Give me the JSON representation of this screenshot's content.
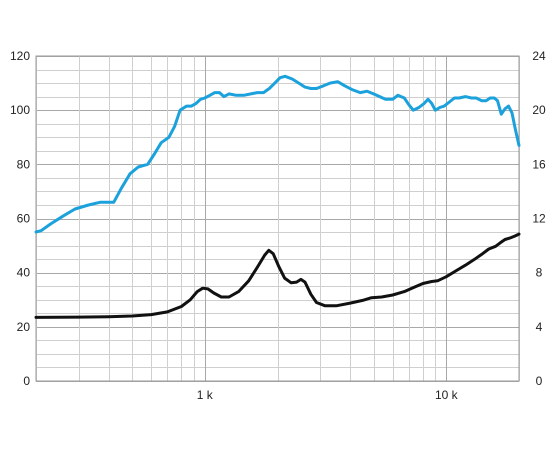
{
  "chart_data": {
    "type": "line",
    "x_scale": "log",
    "xlim": [
      200,
      20000
    ],
    "ylim_left": [
      0,
      120
    ],
    "ylim_right": [
      0,
      24
    ],
    "grid": true,
    "x_tick_labels": [
      {
        "value": 1000,
        "label": "1 k"
      },
      {
        "value": 10000,
        "label": "10 k"
      }
    ],
    "y_left_ticks": [
      0,
      20,
      40,
      60,
      80,
      100,
      120
    ],
    "y_right_ticks": [
      0,
      4,
      8,
      12,
      16,
      20,
      24
    ],
    "series": [
      {
        "axis": "left",
        "color": "#1ba1dc",
        "points": [
          [
            200,
            55
          ],
          [
            210,
            55.5
          ],
          [
            230,
            58
          ],
          [
            260,
            61
          ],
          [
            290,
            63.5
          ],
          [
            330,
            65
          ],
          [
            370,
            66
          ],
          [
            420,
            66
          ],
          [
            450,
            71
          ],
          [
            490,
            76.5
          ],
          [
            530,
            79
          ],
          [
            580,
            80
          ],
          [
            620,
            84
          ],
          [
            660,
            88
          ],
          [
            710,
            90
          ],
          [
            750,
            94
          ],
          [
            790,
            100
          ],
          [
            840,
            101.5
          ],
          [
            880,
            101.5
          ],
          [
            920,
            102.5
          ],
          [
            960,
            104
          ],
          [
            1000,
            104.5
          ],
          [
            1050,
            105.5
          ],
          [
            1100,
            106.5
          ],
          [
            1150,
            106.5
          ],
          [
            1200,
            105
          ],
          [
            1260,
            106
          ],
          [
            1350,
            105.5
          ],
          [
            1450,
            105.5
          ],
          [
            1550,
            106
          ],
          [
            1650,
            106.5
          ],
          [
            1750,
            106.5
          ],
          [
            1850,
            108
          ],
          [
            1950,
            110
          ],
          [
            2050,
            112
          ],
          [
            2150,
            112.5
          ],
          [
            2300,
            111.5
          ],
          [
            2450,
            110
          ],
          [
            2600,
            108.5
          ],
          [
            2750,
            108
          ],
          [
            2900,
            108
          ],
          [
            3100,
            109
          ],
          [
            3300,
            110
          ],
          [
            3550,
            110.5
          ],
          [
            3800,
            109
          ],
          [
            4100,
            107.5
          ],
          [
            4400,
            106.5
          ],
          [
            4700,
            107
          ],
          [
            5000,
            106
          ],
          [
            5300,
            105
          ],
          [
            5600,
            104
          ],
          [
            6000,
            104
          ],
          [
            6300,
            105.5
          ],
          [
            6700,
            104.5
          ],
          [
            7000,
            102
          ],
          [
            7300,
            100
          ],
          [
            7700,
            101
          ],
          [
            8100,
            102.5
          ],
          [
            8400,
            104
          ],
          [
            8700,
            102.5
          ],
          [
            9000,
            100
          ],
          [
            9400,
            101
          ],
          [
            9800,
            101.5
          ],
          [
            10300,
            103
          ],
          [
            10800,
            104.5
          ],
          [
            11300,
            104.5
          ],
          [
            12000,
            105
          ],
          [
            12700,
            104.5
          ],
          [
            13300,
            104.5
          ],
          [
            14000,
            103.5
          ],
          [
            14600,
            103.5
          ],
          [
            15200,
            104.5
          ],
          [
            15800,
            104.5
          ],
          [
            16300,
            103.5
          ],
          [
            16900,
            98.5
          ],
          [
            17500,
            100.5
          ],
          [
            18100,
            101.5
          ],
          [
            18700,
            99
          ],
          [
            19300,
            93
          ],
          [
            20000,
            87
          ]
        ]
      },
      {
        "axis": "right",
        "color": "#111111",
        "points": [
          [
            200,
            4.7
          ],
          [
            300,
            4.72
          ],
          [
            400,
            4.75
          ],
          [
            500,
            4.8
          ],
          [
            600,
            4.9
          ],
          [
            700,
            5.1
          ],
          [
            800,
            5.5
          ],
          [
            870,
            6.0
          ],
          [
            930,
            6.6
          ],
          [
            980,
            6.85
          ],
          [
            1030,
            6.8
          ],
          [
            1090,
            6.5
          ],
          [
            1170,
            6.2
          ],
          [
            1260,
            6.2
          ],
          [
            1380,
            6.6
          ],
          [
            1520,
            7.4
          ],
          [
            1650,
            8.4
          ],
          [
            1770,
            9.3
          ],
          [
            1840,
            9.65
          ],
          [
            1920,
            9.4
          ],
          [
            2020,
            8.5
          ],
          [
            2140,
            7.6
          ],
          [
            2280,
            7.25
          ],
          [
            2400,
            7.3
          ],
          [
            2500,
            7.5
          ],
          [
            2600,
            7.3
          ],
          [
            2750,
            6.4
          ],
          [
            2900,
            5.8
          ],
          [
            3150,
            5.55
          ],
          [
            3500,
            5.55
          ],
          [
            4000,
            5.75
          ],
          [
            4500,
            5.95
          ],
          [
            4900,
            6.15
          ],
          [
            5400,
            6.2
          ],
          [
            6000,
            6.35
          ],
          [
            6700,
            6.6
          ],
          [
            7300,
            6.9
          ],
          [
            8000,
            7.2
          ],
          [
            8700,
            7.35
          ],
          [
            9200,
            7.4
          ],
          [
            10000,
            7.7
          ],
          [
            11000,
            8.15
          ],
          [
            12000,
            8.55
          ],
          [
            13000,
            8.95
          ],
          [
            14000,
            9.35
          ],
          [
            15000,
            9.75
          ],
          [
            16000,
            9.95
          ],
          [
            16700,
            10.2
          ],
          [
            17500,
            10.45
          ],
          [
            18300,
            10.55
          ],
          [
            19200,
            10.7
          ],
          [
            20000,
            10.85
          ]
        ]
      }
    ]
  }
}
